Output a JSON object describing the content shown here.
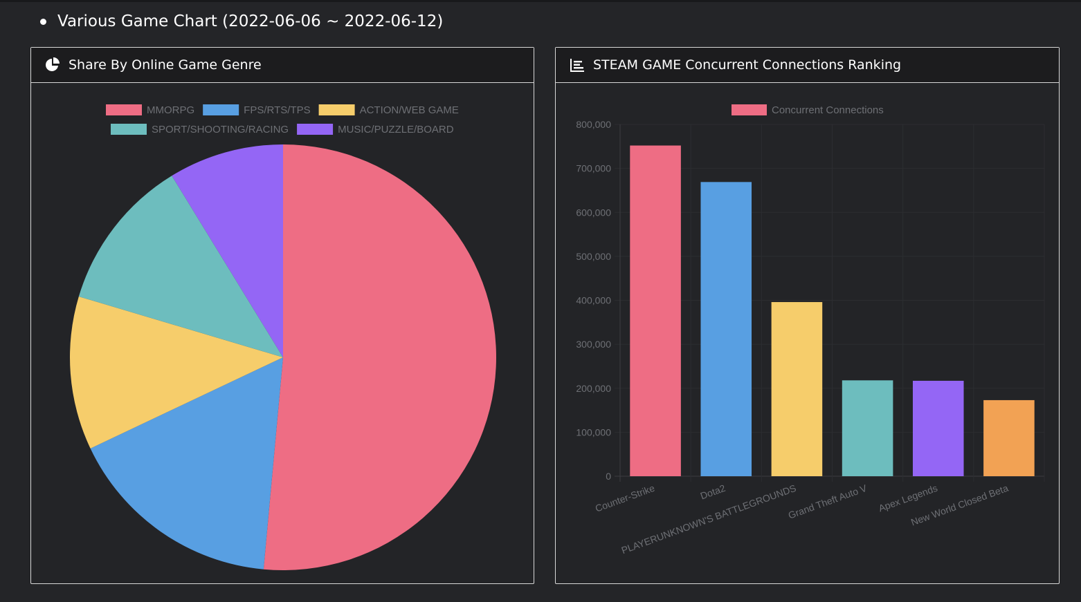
{
  "page": {
    "section_title": "Various Game Chart (2022-06-06 ~ 2022-06-12)"
  },
  "panels": {
    "genre": {
      "title": "Share By Online Game Genre",
      "icon": "pie-chart-icon"
    },
    "steam": {
      "title": "STEAM GAME Concurrent Connections Ranking",
      "icon": "bar-chart-icon"
    }
  },
  "chart_data": [
    {
      "type": "pie",
      "categories": [
        "MMORPG",
        "FPS/RTS/TPS",
        "ACTION/WEB GAME",
        "SPORT/SHOOTING/RACING",
        "MUSIC/PUZZLE/BOARD"
      ],
      "values": [
        53,
        17,
        12,
        12,
        9
      ],
      "colors": [
        "#ee6d84",
        "#589fe2",
        "#f6cd6b",
        "#6dbdbe",
        "#9466f5"
      ],
      "legend": "top"
    },
    {
      "type": "bar",
      "categories": [
        "Counter-Strike",
        "Dota2",
        "PLAYERUNKNOWN'S BATTLEGROUNDS",
        "Grand Theft Auto V",
        "Apex Legends",
        "New World Closed Beta"
      ],
      "series": [
        {
          "name": "Concurrent Connections",
          "values": [
            752000,
            669000,
            396000,
            218000,
            217000,
            173000
          ]
        }
      ],
      "colors": [
        "#ee6d84",
        "#589fe2",
        "#f6cd6b",
        "#6dbdbe",
        "#9466f5",
        "#f2a254"
      ],
      "ylim": [
        0,
        800000
      ],
      "yticks": [
        "0",
        "100,000",
        "200,000",
        "300,000",
        "400,000",
        "500,000",
        "600,000",
        "700,000",
        "800,000"
      ],
      "grid": true,
      "legend": "top"
    }
  ]
}
